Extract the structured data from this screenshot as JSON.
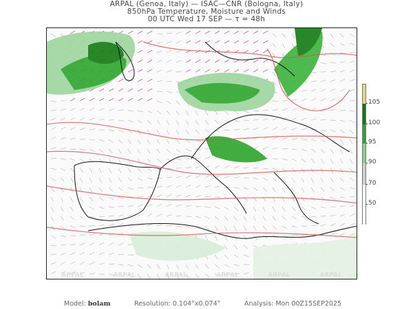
{
  "header": {
    "line1": "ARPAL (Genoa, Italy)  —  ISAC—CNR (Bologna, Italy)",
    "line2": "850hPa Temperature, Moisture and Winds",
    "line3": "00 UTC Wed 17 SEP  —  τ = 48h"
  },
  "map": {
    "watermark": "ARPAL",
    "colors": {
      "moisture_dark": "#1f8f1f",
      "moisture_mid": "#3cb33c",
      "moisture_light": "#9fd69f",
      "temperature_contour": "#d9534f",
      "wind_strong": "#c0308a",
      "wind": "#999999",
      "coast": "#111111"
    }
  },
  "colorbar": {
    "segments": [
      {
        "color": "#e3d77a"
      },
      {
        "color": "#137a13"
      },
      {
        "color": "#2ea52e"
      },
      {
        "color": "#8fd08f"
      },
      {
        "color": "#cfcfcf"
      },
      {
        "color": "#ffffff"
      }
    ],
    "labels": [
      "105",
      "100",
      "95",
      "90",
      "70",
      "50"
    ]
  },
  "footer": {
    "model_label": "Model:",
    "model_value": "bolam",
    "resolution": "Resolution: 0.104°x0.074°",
    "analysis": "Analysis: Mon 00Z15SEP2025"
  }
}
